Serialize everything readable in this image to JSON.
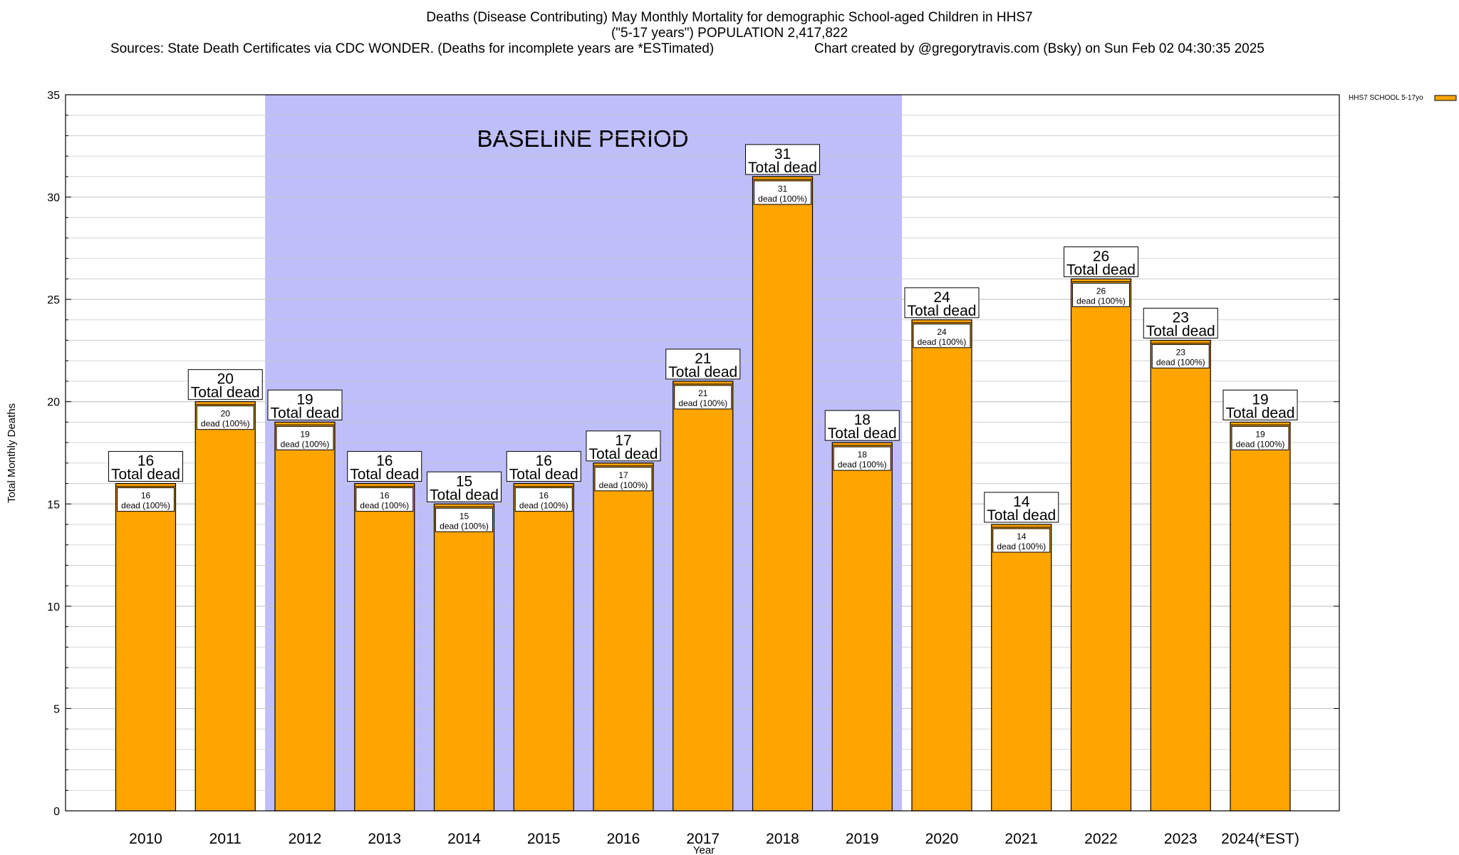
{
  "chart_data": {
    "type": "bar",
    "title_line1": "Deaths (Disease Contributing) May Monthly Mortality for demographic School-aged Children in HHS7",
    "title_line2": "(\"5-17 years\") POPULATION 2,417,822",
    "sources": "Sources: State Death Certificates via CDC WONDER. (Deaths for incomplete years are *ESTimated)",
    "credit": "Chart created by @gregorytravis.com (Bsky) on Sun Feb 02 04:30:35 2025",
    "xlabel": "Year",
    "ylabel": "Total Monthly Deaths",
    "ylim": [
      0,
      35
    ],
    "yticks": [
      0,
      5,
      10,
      15,
      20,
      25,
      30,
      35
    ],
    "categories": [
      "2010",
      "2011",
      "2012",
      "2013",
      "2014",
      "2015",
      "2016",
      "2017",
      "2018",
      "2019",
      "2020",
      "2021",
      "2022",
      "2023",
      "2024(*EST)"
    ],
    "series": [
      {
        "name": "HHS7 SCHOOL 5-17yo",
        "values": [
          16,
          20,
          19,
          16,
          15,
          16,
          17,
          21,
          31,
          18,
          24,
          14,
          26,
          23,
          19
        ]
      }
    ],
    "total_label": "Total dead",
    "inner_label": "dead (100%)",
    "baseline": {
      "label": "BASELINE PERIOD",
      "start": "2012",
      "end": "2019"
    },
    "legend_position": "top-right",
    "grid": true,
    "colors": {
      "bar": "#FFA500",
      "baseline": "#BEBEFA",
      "grid": "#C8C8C8"
    }
  }
}
